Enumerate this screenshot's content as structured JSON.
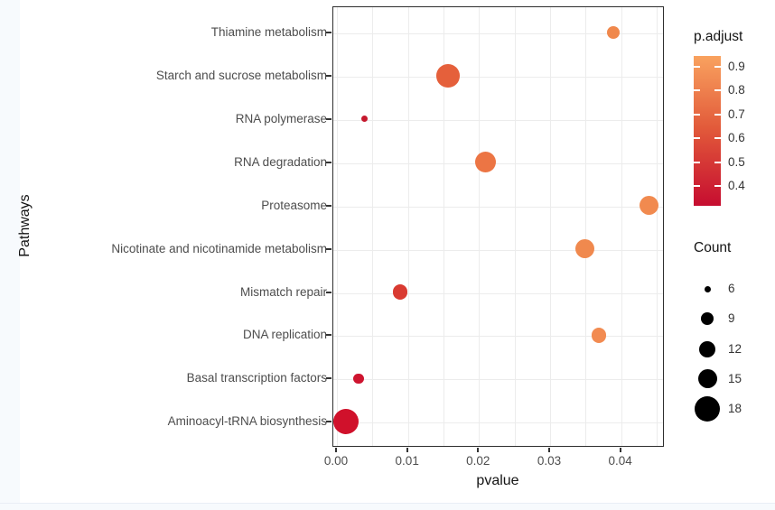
{
  "figure": {
    "x_axis": {
      "label": "pvalue",
      "tick_labels": [
        "0.00",
        "0.01",
        "0.02",
        "0.03",
        "0.04"
      ],
      "tick_values": [
        0.0,
        0.01,
        0.02,
        0.03,
        0.04
      ]
    },
    "y_axis": {
      "label": "Pathways"
    },
    "color_legend": {
      "title": "p.adjust",
      "tick_labels": [
        "0.9",
        "0.8",
        "0.7",
        "0.6",
        "0.5",
        "0.4"
      ],
      "tick_values": [
        0.9,
        0.8,
        0.7,
        0.6,
        0.5,
        0.4
      ],
      "gradient_top_color": "#f9a25f",
      "gradient_mid_color": "#e25a3a",
      "gradient_bottom_color": "#c60d30"
    },
    "size_legend": {
      "title": "Count",
      "entries": [
        6,
        9,
        12,
        15,
        18
      ]
    }
  },
  "chart_data": {
    "type": "scatter",
    "title": "",
    "xlabel": "pvalue",
    "ylabel": "Pathways",
    "xlim": [
      -0.0005,
      0.0465
    ],
    "x_ticks": [
      0.0,
      0.01,
      0.02,
      0.03,
      0.04
    ],
    "grid": true,
    "legend_position": "right",
    "categories": [
      "Thiamine metabolism",
      "Starch and sucrose metabolism",
      "RNA polymerase",
      "RNA degradation",
      "Proteasome",
      "Nicotinate and nicotinamide metabolism",
      "Mismatch repair",
      "DNA replication",
      "Basal transcription factors",
      "Aminoacyl-tRNA biosynthesis"
    ],
    "points": [
      {
        "pathway": "Thiamine metabolism",
        "pvalue": 0.039,
        "count": 9,
        "p_adjust": 0.84,
        "color": "#f0884c"
      },
      {
        "pathway": "Starch and sucrose metabolism",
        "pvalue": 0.0158,
        "count": 17,
        "p_adjust": 0.56,
        "color": "#e5603b"
      },
      {
        "pathway": "RNA polymerase",
        "pvalue": 0.004,
        "count": 6,
        "p_adjust": 0.37,
        "color": "#c5182d"
      },
      {
        "pathway": "RNA degradation",
        "pvalue": 0.021,
        "count": 16,
        "p_adjust": 0.68,
        "color": "#ec7544"
      },
      {
        "pathway": "Proteasome",
        "pvalue": 0.044,
        "count": 15,
        "p_adjust": 0.87,
        "color": "#f18a4f"
      },
      {
        "pathway": "Nicotinate and nicotinamide metabolism",
        "pvalue": 0.035,
        "count": 15,
        "p_adjust": 0.85,
        "color": "#f0894e"
      },
      {
        "pathway": "Mismatch repair",
        "pvalue": 0.009,
        "count": 11,
        "p_adjust": 0.47,
        "color": "#d93a31"
      },
      {
        "pathway": "DNA replication",
        "pvalue": 0.037,
        "count": 11,
        "p_adjust": 0.86,
        "color": "#f28b51"
      },
      {
        "pathway": "Basal transcription factors",
        "pvalue": 0.0032,
        "count": 8,
        "p_adjust": 0.36,
        "color": "#ce142f"
      },
      {
        "pathway": "Aminoacyl-tRNA biosynthesis",
        "pvalue": 0.0014,
        "count": 18,
        "p_adjust": 0.33,
        "color": "#d0112b"
      }
    ],
    "size_scale": {
      "name": "Count",
      "breaks": [
        6,
        9,
        12,
        15,
        18
      ]
    },
    "color_scale": {
      "name": "p.adjust",
      "domain": [
        0.32,
        0.94
      ]
    }
  }
}
